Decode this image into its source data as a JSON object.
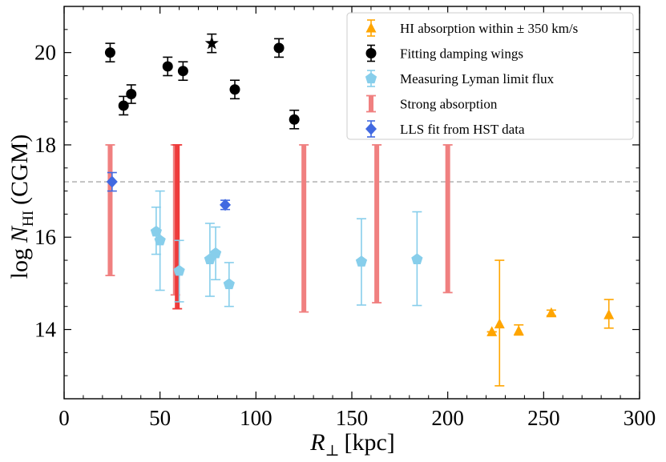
{
  "chart_data": {
    "type": "scatter",
    "xlabel_main": "R",
    "xlabel_sub": "⊥",
    "xlabel_unit": "[kpc]",
    "ylabel_prefix": "log",
    "ylabel_main": "N",
    "ylabel_sub": "HI",
    "ylabel_suffix": "(CGM)",
    "xlim": [
      0,
      300
    ],
    "ylim": [
      12.5,
      21.0
    ],
    "x_ticks": [
      0,
      50,
      100,
      150,
      200,
      250,
      300
    ],
    "y_ticks": [
      14,
      16,
      18,
      20
    ],
    "x_tick_labels": [
      "0",
      "50",
      "100",
      "150",
      "200",
      "250",
      "300"
    ],
    "y_tick_labels": [
      "14",
      "16",
      "18",
      "20"
    ],
    "reference_line_y": 17.2,
    "legend_position": "top-right",
    "colors": {
      "hi_absorption": "#FFA500",
      "damping": "#000000",
      "lyman": "#87CEEB",
      "strong": "#F08080",
      "strong_dark": "#EE3B3B",
      "lls": "#4169E1",
      "refline": "#aaaaaa"
    },
    "series": [
      {
        "name": "HI absorption within ± 350 km/s",
        "marker": "triangle",
        "points": [
          {
            "x": 223,
            "y": 13.95,
            "lo": 13.95,
            "hi": 13.95
          },
          {
            "x": 227,
            "y": 14.12,
            "lo": 12.78,
            "hi": 15.5
          },
          {
            "x": 237,
            "y": 13.97,
            "lo": 13.88,
            "hi": 14.1
          },
          {
            "x": 254,
            "y": 14.36,
            "lo": 14.3,
            "hi": 14.42
          },
          {
            "x": 284,
            "y": 14.32,
            "lo": 14.03,
            "hi": 14.65
          }
        ]
      },
      {
        "name": "Fitting damping wings",
        "marker": "circle",
        "points": [
          {
            "x": 24,
            "y": 20.0,
            "lo": 19.8,
            "hi": 20.2
          },
          {
            "x": 31,
            "y": 18.85,
            "lo": 18.65,
            "hi": 19.05
          },
          {
            "x": 35,
            "y": 19.1,
            "lo": 18.9,
            "hi": 19.3
          },
          {
            "x": 54,
            "y": 19.7,
            "lo": 19.5,
            "hi": 19.9
          },
          {
            "x": 62,
            "y": 19.6,
            "lo": 19.4,
            "hi": 19.8
          },
          {
            "x": 89,
            "y": 19.2,
            "lo": 19.0,
            "hi": 19.4
          },
          {
            "x": 112,
            "y": 20.1,
            "lo": 19.9,
            "hi": 20.3
          },
          {
            "x": 120,
            "y": 18.55,
            "lo": 18.35,
            "hi": 18.75
          }
        ]
      },
      {
        "name": "",
        "marker": "star",
        "points": [
          {
            "x": 77,
            "y": 20.2,
            "lo": 20.0,
            "hi": 20.4
          }
        ]
      },
      {
        "name": "Measuring Lyman limit flux",
        "marker": "pentagon",
        "points": [
          {
            "x": 48,
            "y": 16.12,
            "lo": 15.63,
            "hi": 16.65
          },
          {
            "x": 50,
            "y": 15.93,
            "lo": 14.85,
            "hi": 17.0
          },
          {
            "x": 60,
            "y": 15.27,
            "lo": 14.6,
            "hi": 15.93
          },
          {
            "x": 76,
            "y": 15.52,
            "lo": 14.72,
            "hi": 16.3
          },
          {
            "x": 79,
            "y": 15.65,
            "lo": 15.08,
            "hi": 16.22
          },
          {
            "x": 86,
            "y": 14.98,
            "lo": 14.5,
            "hi": 15.45
          },
          {
            "x": 155,
            "y": 15.47,
            "lo": 14.53,
            "hi": 16.4
          },
          {
            "x": 184,
            "y": 15.52,
            "lo": 14.52,
            "hi": 16.55
          }
        ]
      },
      {
        "name": "Strong absorption",
        "marker": "bar",
        "points": [
          {
            "x": 24,
            "lo": 15.17,
            "hi": 18.0
          },
          {
            "x": 58,
            "lo": 14.75,
            "hi": 18.0
          },
          {
            "x": 59,
            "lo": 14.45,
            "hi": 18.0,
            "dark": true
          },
          {
            "x": 125,
            "lo": 14.38,
            "hi": 18.0
          },
          {
            "x": 163,
            "lo": 14.58,
            "hi": 18.0
          },
          {
            "x": 200,
            "lo": 14.8,
            "hi": 18.0
          }
        ]
      },
      {
        "name": "LLS fit from HST data",
        "marker": "diamond",
        "points": [
          {
            "x": 25,
            "y": 17.2,
            "lo": 17.0,
            "hi": 17.4
          },
          {
            "x": 84,
            "y": 16.7,
            "lo": 16.6,
            "hi": 16.8
          }
        ]
      }
    ]
  }
}
